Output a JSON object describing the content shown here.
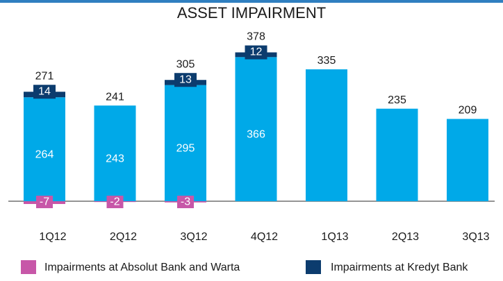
{
  "chart_data": {
    "type": "bar",
    "title": "ASSET IMPAIRMENT",
    "categories": [
      "1Q12",
      "2Q12",
      "3Q12",
      "4Q12",
      "1Q13",
      "2Q13",
      "3Q13"
    ],
    "series": [
      {
        "color": "#00a9e8",
        "values": [
          264,
          243,
          295,
          366,
          335,
          235,
          209
        ]
      },
      {
        "name": "Impairments at Kredyt Bank",
        "color": "#0c3c6e",
        "values": [
          14,
          null,
          13,
          12,
          null,
          null,
          null
        ]
      },
      {
        "name": "Impairments at Absolut Bank and Warta",
        "color": "#c757a8",
        "values": [
          -7,
          -2,
          -3,
          null,
          null,
          null,
          null
        ]
      }
    ],
    "totals": [
      271,
      241,
      305,
      378,
      335,
      235,
      209
    ],
    "ylim": [
      -20,
      400
    ]
  }
}
